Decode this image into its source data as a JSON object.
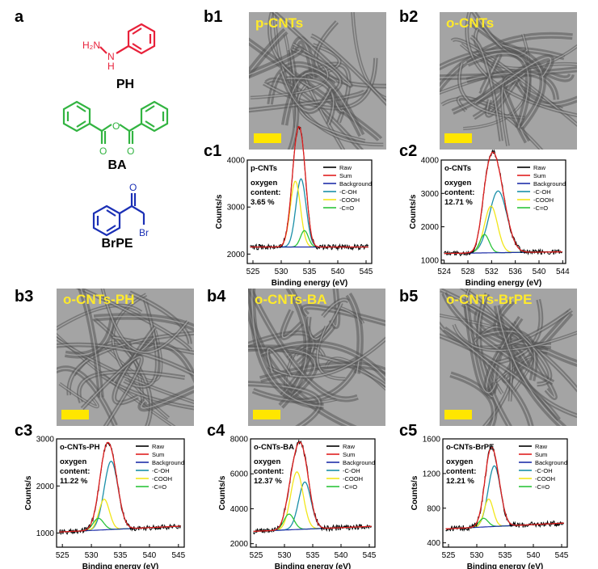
{
  "panel_labels": {
    "a": "a",
    "b1": "b1",
    "b2": "b2",
    "b3": "b3",
    "b4": "b4",
    "b5": "b5",
    "c1": "c1",
    "c2": "c2",
    "c3": "c3",
    "c4": "c4",
    "c5": "c5"
  },
  "molecules": {
    "ph": {
      "name": "PH",
      "atom1": "H₂N",
      "atom2": "N",
      "atom3": "H",
      "color": "#e8213a"
    },
    "ba": {
      "name": "BA",
      "color": "#32b441"
    },
    "brpe": {
      "name": "BrPE",
      "atom": "Br",
      "color": "#1a2fb5"
    }
  },
  "tem_titles": {
    "b1": "p-CNTs",
    "b2": "o-CNTs",
    "b3": "o-CNTs-PH",
    "b4": "o-CNTs-BA",
    "b5": "o-CNTs-BrPE"
  },
  "colors": {
    "raw": "#000000",
    "sum": "#e02020",
    "background": "#1f2fa8",
    "coh": "#1a8fa8",
    "cooh": "#f2e61a",
    "co": "#2bc43a",
    "scale": "#ffe600"
  },
  "legend": [
    "Raw",
    "Sum",
    "Background",
    "-C-OH",
    "-COOH",
    "-C=O"
  ],
  "xlabel": "Binding energy (eV)",
  "ylabel": "Counts/s",
  "chart_data": [
    {
      "id": "c1",
      "type": "line",
      "title": "p-CNTs",
      "annotation": [
        "oxygen",
        "content:",
        "3.65 %"
      ],
      "xlim": [
        524,
        546
      ],
      "ylim": [
        1800,
        4000
      ],
      "xticks": [
        525,
        530,
        535,
        540,
        545
      ],
      "yticks": [
        2000,
        3000,
        4000
      ],
      "bg": [
        2150,
        2150
      ],
      "peaks": [
        [
          533.5,
          1450,
          0.9,
          "coh"
        ],
        [
          532.5,
          1400,
          0.9,
          "cooh"
        ],
        [
          534.1,
          350,
          0.7,
          "co"
        ]
      ]
    },
    {
      "id": "c2",
      "type": "line",
      "title": "o-CNTs",
      "annotation": [
        "oxygen",
        "content:",
        "12.71 %"
      ],
      "xlim": [
        523.5,
        544.5
      ],
      "ylim": [
        900,
        4000
      ],
      "xticks": [
        524,
        528,
        532,
        536,
        540,
        544
      ],
      "yticks": [
        1000,
        2000,
        3000,
        4000
      ],
      "bg": [
        1200,
        1250
      ],
      "peaks": [
        [
          533.1,
          1850,
          1.5,
          "coh"
        ],
        [
          531.9,
          1400,
          1.1,
          "cooh"
        ],
        [
          530.8,
          550,
          0.8,
          "co"
        ]
      ]
    },
    {
      "id": "c3",
      "type": "line",
      "title": "o-CNTs-PH",
      "annotation": [
        "oxygen",
        "content:",
        "11.22 %"
      ],
      "xlim": [
        524,
        546
      ],
      "ylim": [
        700,
        3000
      ],
      "xticks": [
        525,
        530,
        535,
        540,
        545
      ],
      "yticks": [
        1000,
        2000,
        3000
      ],
      "bg": [
        1020,
        1150
      ],
      "peaks": [
        [
          533.4,
          1450,
          1.2,
          "coh"
        ],
        [
          532.2,
          650,
          0.9,
          "cooh"
        ],
        [
          531.2,
          250,
          0.9,
          "co"
        ]
      ]
    },
    {
      "id": "c4",
      "type": "line",
      "title": "o-CNTs-BA",
      "annotation": [
        "oxygen",
        "content:",
        "12.37 %"
      ],
      "xlim": [
        524,
        546
      ],
      "ylim": [
        1800,
        8000
      ],
      "xticks": [
        525,
        530,
        535,
        540,
        545
      ],
      "yticks": [
        2000,
        4000,
        6000,
        8000
      ],
      "bg": [
        2700,
        3000
      ],
      "peaks": [
        [
          533.6,
          2700,
          1.1,
          "coh"
        ],
        [
          532.2,
          3300,
          1.1,
          "cooh"
        ],
        [
          530.8,
          900,
          0.9,
          "co"
        ]
      ]
    },
    {
      "id": "c5",
      "type": "line",
      "title": "o-CNTs-BrPE",
      "annotation": [
        "oxygen",
        "content:",
        "12.21 %"
      ],
      "xlim": [
        524,
        546
      ],
      "ylim": [
        350,
        1600
      ],
      "xticks": [
        525,
        530,
        535,
        540,
        545
      ],
      "yticks": [
        400,
        800,
        1200,
        1600
      ],
      "bg": [
        560,
        630
      ],
      "peaks": [
        [
          533.1,
          700,
          1.1,
          "coh"
        ],
        [
          532.1,
          320,
          0.8,
          "cooh"
        ],
        [
          531.2,
          100,
          0.8,
          "co"
        ]
      ]
    }
  ]
}
